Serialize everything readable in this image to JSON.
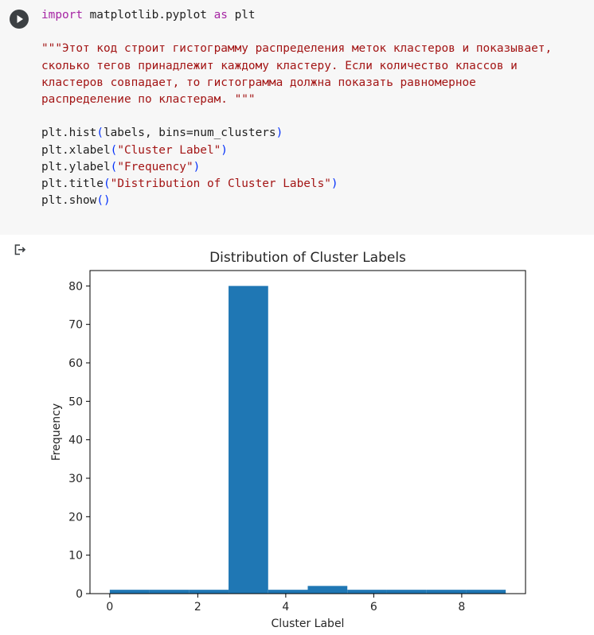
{
  "cell": {
    "code": {
      "line1_kw": "import",
      "line1_mid": " matplotlib.pyplot ",
      "line1_as": "as",
      "line1_end": " plt",
      "doc_lines": [
        "\"\"\"Этот код строит гистограмму распределения меток кластеров и показывает,",
        "сколько тегов принадлежит каждому кластеру. Если количество классов и",
        "кластеров совпадает, то гистограмма должна показать равномерное",
        "распределение по кластерам. \"\"\""
      ],
      "hist_a": "plt.hist",
      "hist_open": "(",
      "hist_args": "labels, bins=num_clusters",
      "hist_close": ")",
      "xlabel_a": "plt.xlabel",
      "xlabel_arg": "\"Cluster Label\"",
      "ylabel_a": "plt.ylabel",
      "ylabel_arg": "\"Frequency\"",
      "title_a": "plt.title",
      "title_arg": "\"Distribution of Cluster Labels\"",
      "show_a": "plt.show",
      "show_parens": "()"
    }
  },
  "colors": {
    "bar": "#1f77b4",
    "axes": "#000000"
  },
  "chart_data": {
    "type": "bar",
    "title": "Distribution of Cluster Labels",
    "xlabel": "Cluster Label",
    "ylabel": "Frequency",
    "bins": [
      {
        "x0": 0,
        "x1": 0.9,
        "count": 1
      },
      {
        "x0": 0.9,
        "x1": 1.8,
        "count": 1
      },
      {
        "x0": 1.8,
        "x1": 2.7,
        "count": 1
      },
      {
        "x0": 2.7,
        "x1": 3.6,
        "count": 80
      },
      {
        "x0": 3.6,
        "x1": 4.5,
        "count": 1
      },
      {
        "x0": 4.5,
        "x1": 5.4,
        "count": 2
      },
      {
        "x0": 5.4,
        "x1": 6.3,
        "count": 1
      },
      {
        "x0": 6.3,
        "x1": 7.2,
        "count": 1
      },
      {
        "x0": 7.2,
        "x1": 8.1,
        "count": 1
      },
      {
        "x0": 8.1,
        "x1": 9.0,
        "count": 1
      }
    ],
    "xlim": [
      -0.45,
      9.45
    ],
    "ylim": [
      0,
      84
    ],
    "xticks": [
      0,
      2,
      4,
      6,
      8
    ],
    "yticks": [
      0,
      10,
      20,
      30,
      40,
      50,
      60,
      70,
      80
    ],
    "grid": false
  }
}
